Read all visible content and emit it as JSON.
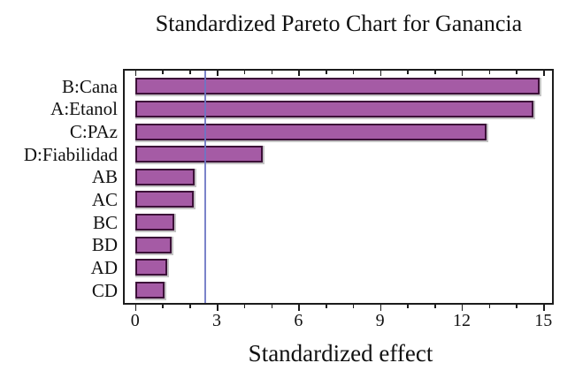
{
  "chart_data": {
    "type": "bar",
    "orientation": "horizontal",
    "title": "Standardized Pareto Chart for Ganancia",
    "xlabel": "Standardized effect",
    "ylabel": "",
    "categories": [
      "B:Cana",
      "A:Etanol",
      "C:PAz",
      "D:Fiabilidad",
      "AB",
      "AC",
      "BC",
      "BD",
      "AD",
      "CD"
    ],
    "values": [
      14.85,
      14.65,
      12.9,
      4.7,
      2.2,
      2.15,
      1.43,
      1.35,
      1.19,
      1.08
    ],
    "reference_line_value": 2.57,
    "x_major_ticks": [
      0,
      3,
      6,
      9,
      12,
      15
    ],
    "x_minor_tick_step": 1,
    "xlim": [
      -0.45,
      15.4
    ],
    "grid": "off",
    "legend": "none",
    "colors": {
      "bar_fill": "#a55ba5",
      "bar_border": "#3c1038",
      "reference_line": "#6d76c4",
      "axis": "#1c1c1c",
      "text": "#111111",
      "background": "#ffffff"
    }
  }
}
